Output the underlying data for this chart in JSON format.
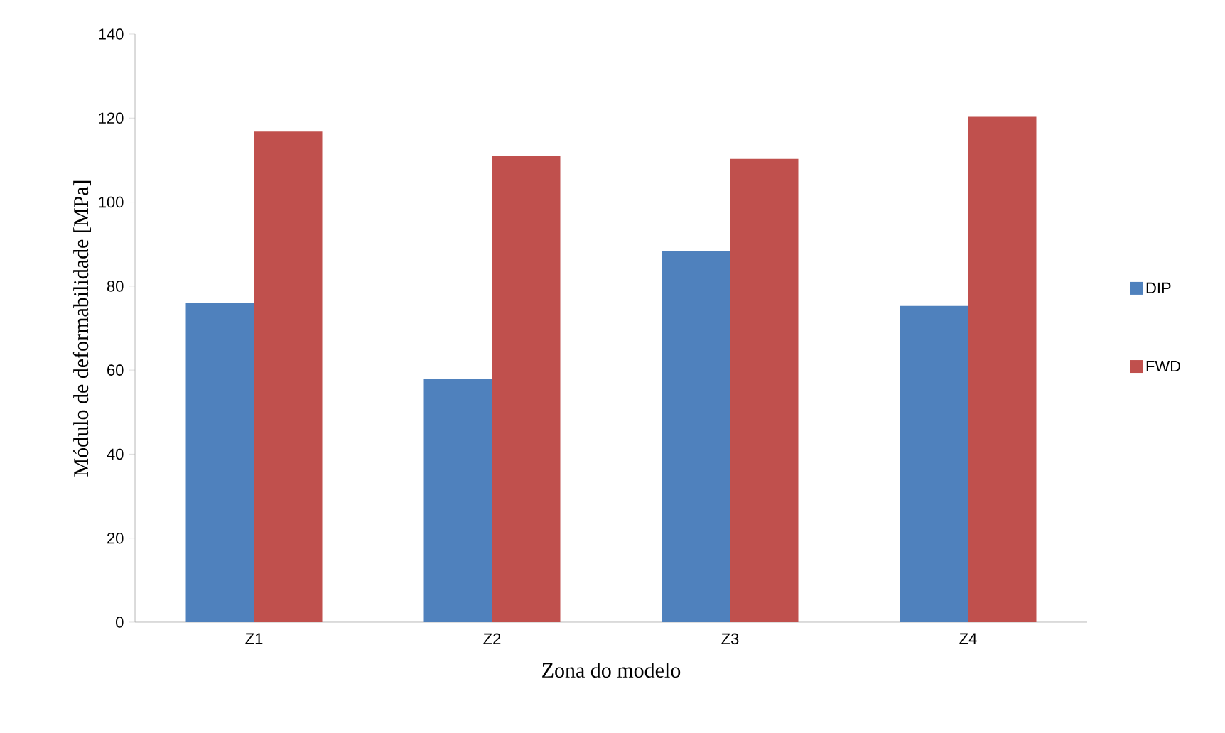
{
  "chart_data": {
    "type": "bar",
    "xlabel": "Zona do modelo",
    "ylabel": "Módulo  de deformabilidade  [MPa]",
    "categories": [
      "Z1",
      "Z2",
      "Z3",
      "Z4"
    ],
    "series": [
      {
        "name": "DIP",
        "color": "#4f81bd",
        "values": [
          75.9,
          58.0,
          88.4,
          75.3
        ]
      },
      {
        "name": "FWD",
        "color": "#c0504d",
        "values": [
          116.8,
          110.9,
          110.3,
          120.3
        ]
      }
    ],
    "ylim": [
      0,
      140
    ],
    "yticks": [
      0,
      20,
      40,
      60,
      80,
      100,
      120,
      140
    ],
    "legend": "right"
  }
}
